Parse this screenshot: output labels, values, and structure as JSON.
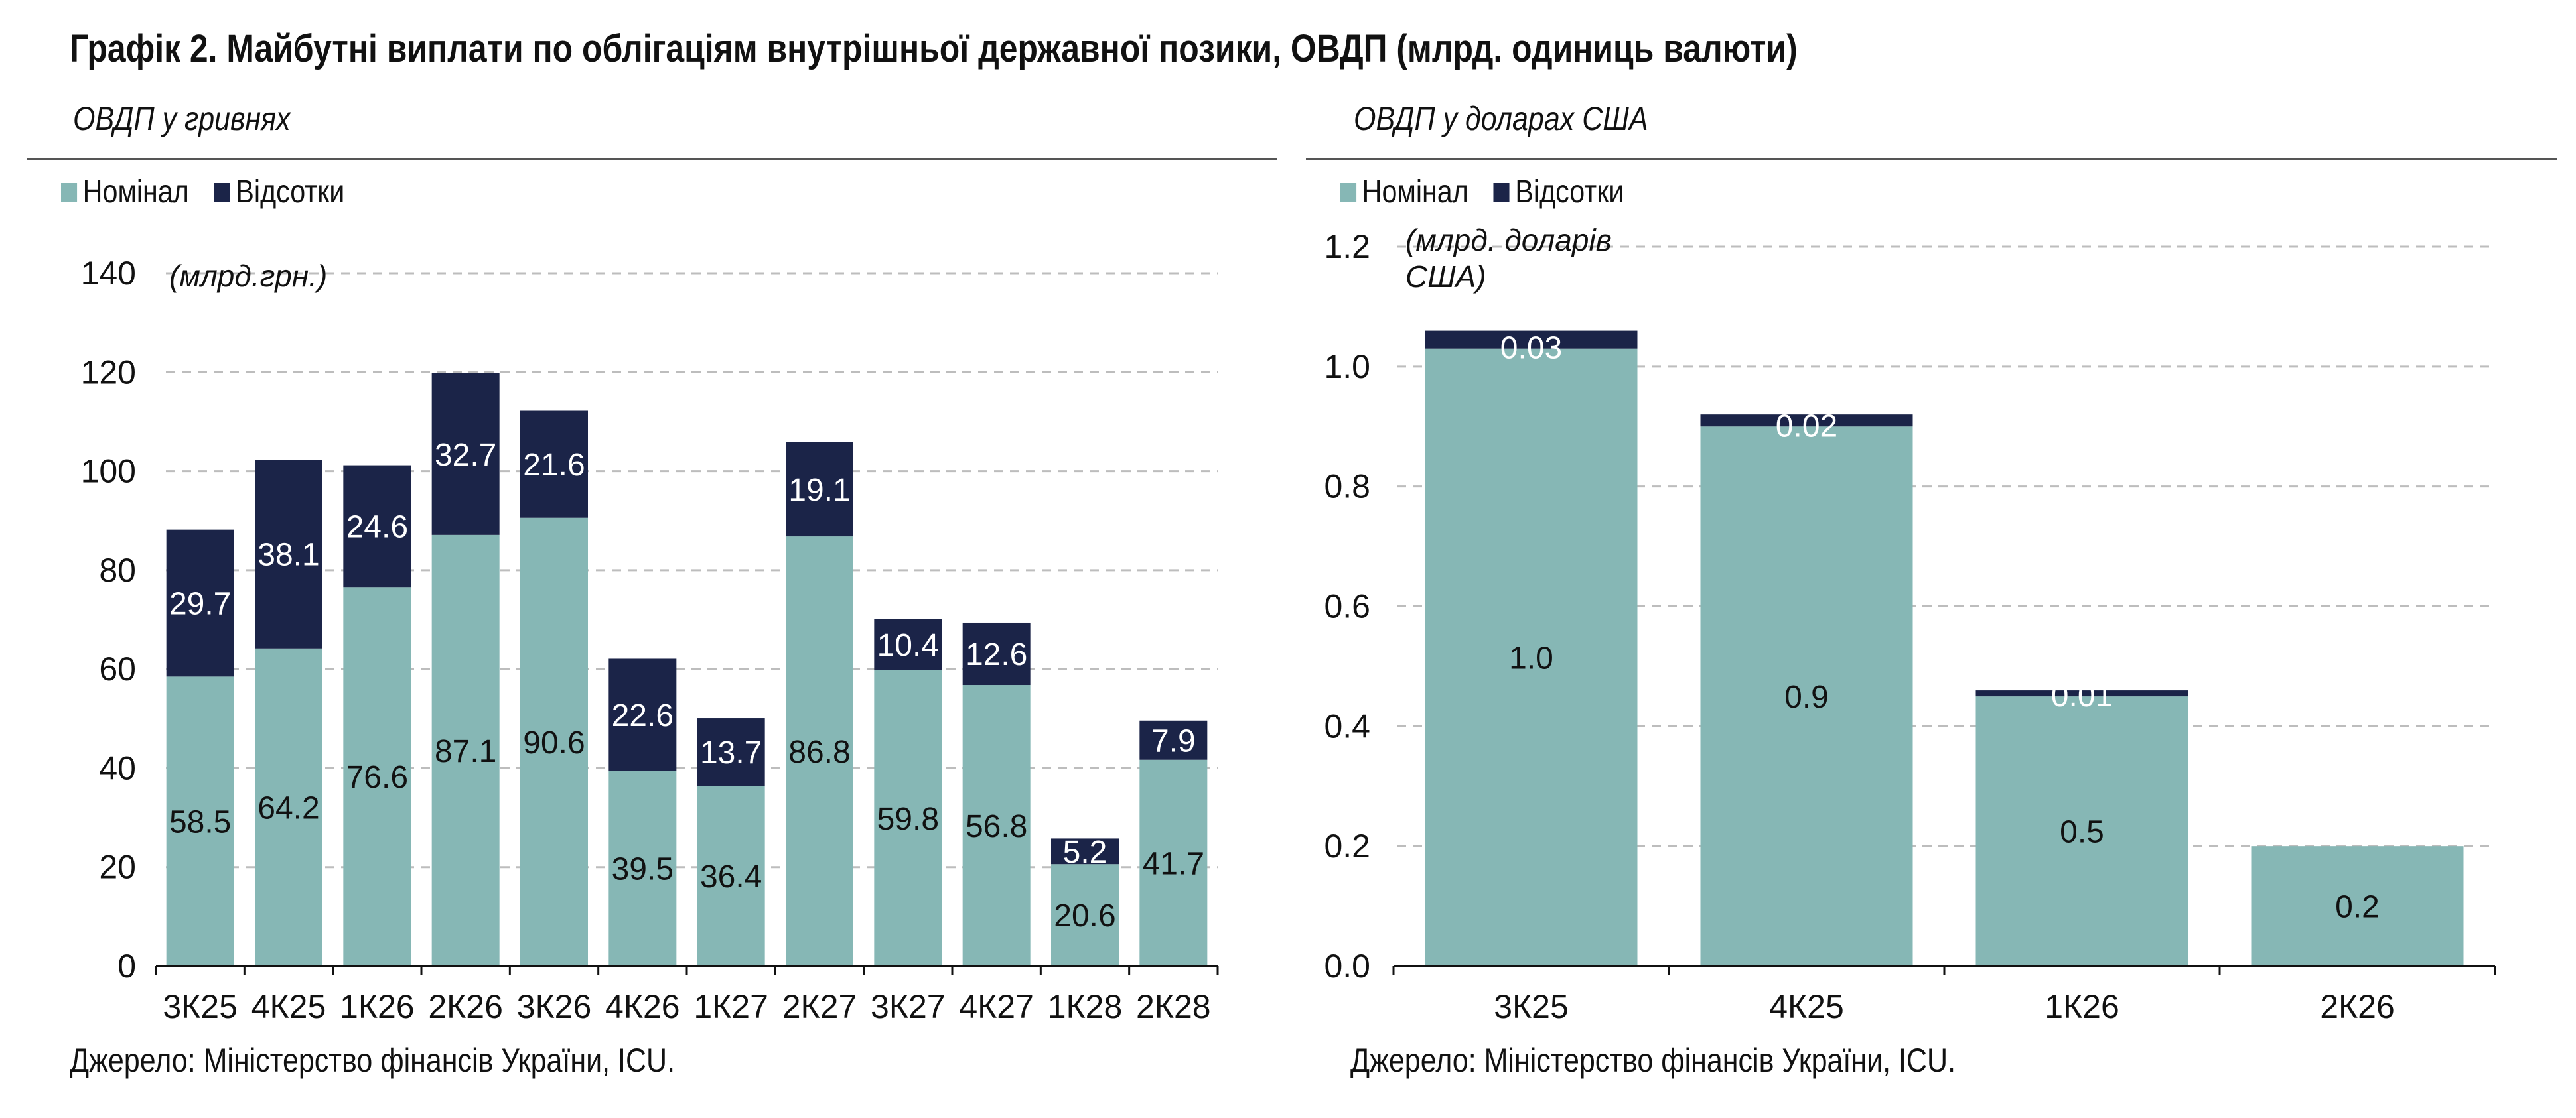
{
  "title": "Графік 2. Майбутні виплати по облігаціям внутрішньої державної позики, ОВДП (млрд. одиниць валюти)",
  "colors": {
    "nominal": "#86b7b5",
    "interest": "#1b2448",
    "grid": "#bdbdbd",
    "axis": "#111111"
  },
  "chart_data": [
    {
      "type": "bar",
      "stacked": true,
      "subtitle": "ОВДП у гривнях",
      "unit_note": "(млрд.грн.)",
      "legend": [
        "Номінал",
        "Відсотки"
      ],
      "categories": [
        "3К25",
        "4К25",
        "1К26",
        "2К26",
        "3К26",
        "4К26",
        "1К27",
        "2К27",
        "3К27",
        "4К27",
        "1К28",
        "2К28"
      ],
      "series": [
        {
          "name": "Номінал",
          "values": [
            58.5,
            64.2,
            76.6,
            87.1,
            90.6,
            39.5,
            36.4,
            86.8,
            59.8,
            56.8,
            20.6,
            41.7
          ]
        },
        {
          "name": "Відсотки",
          "values": [
            29.7,
            38.1,
            24.6,
            32.7,
            21.6,
            22.6,
            13.7,
            19.1,
            10.4,
            12.6,
            5.2,
            7.9
          ]
        }
      ],
      "series_labels": [
        [
          "58.5",
          "64.2",
          "76.6",
          "87.1",
          "90.6",
          "39.5",
          "36.4",
          "86.8",
          "59.8",
          "56.8",
          "20.6",
          "41.7"
        ],
        [
          "29.7",
          "38.1",
          "24.6",
          "32.7",
          "21.6",
          "22.6",
          "13.7",
          "19.1",
          "10.4",
          "12.6",
          "5.2",
          "7.9"
        ]
      ],
      "ylim": [
        0,
        140
      ],
      "yticks": [
        0,
        20,
        40,
        60,
        80,
        100,
        120,
        140
      ],
      "ytick_labels": [
        "0",
        "20",
        "40",
        "60",
        "80",
        "100",
        "120",
        "140"
      ],
      "grid": true,
      "legend_position": "top-left",
      "source": "Джерело: Міністерство фінансів України, ICU."
    },
    {
      "type": "bar",
      "stacked": true,
      "subtitle": "ОВДП у доларах США",
      "unit_note": [
        "(млрд. доларів",
        "США)"
      ],
      "legend": [
        "Номінал",
        "Відсотки"
      ],
      "categories": [
        "3К25",
        "4К25",
        "1К26",
        "2К26"
      ],
      "series": [
        {
          "name": "Номінал",
          "values": [
            1.03,
            0.9,
            0.45,
            0.2
          ]
        },
        {
          "name": "Відсотки",
          "values": [
            0.03,
            0.02,
            0.01,
            0.0
          ]
        }
      ],
      "series_labels": [
        [
          "1.0",
          "0.9",
          "0.5",
          "0.2"
        ],
        [
          "0.03",
          "0.02",
          "0.01",
          ""
        ]
      ],
      "ylim": [
        0,
        1.2
      ],
      "yticks": [
        0,
        0.2,
        0.4,
        0.6,
        0.8,
        1.0,
        1.2
      ],
      "ytick_labels": [
        "0.0",
        "0.2",
        "0.4",
        "0.6",
        "0.8",
        "1.0",
        "1.2"
      ],
      "grid": true,
      "legend_position": "top-left",
      "source": "Джерело: Міністерство фінансів України, ICU."
    }
  ]
}
